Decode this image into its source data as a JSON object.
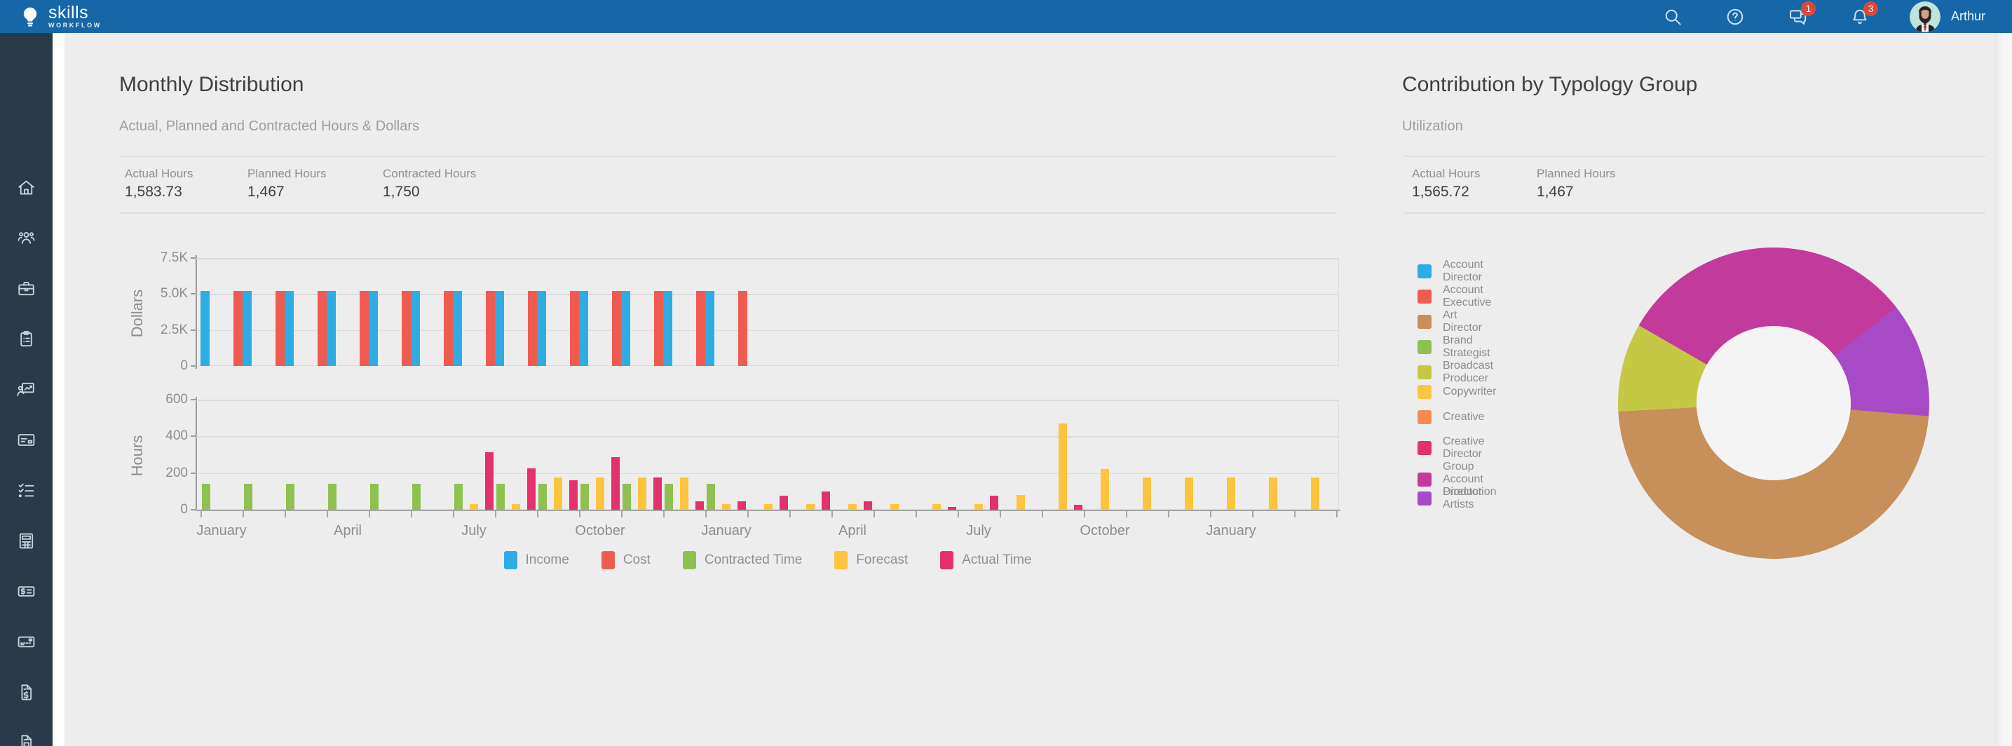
{
  "header": {
    "brand": {
      "name": "skills",
      "sub": "WORKFLOW"
    },
    "badges": {
      "messages": "1",
      "notifications": "3"
    },
    "user": {
      "name": "Arthur"
    }
  },
  "sidebar": {
    "items": [
      {
        "icon": "home"
      },
      {
        "icon": "team"
      },
      {
        "icon": "briefcase"
      },
      {
        "icon": "clipboard"
      },
      {
        "icon": "presentation"
      },
      {
        "icon": "payment-card"
      },
      {
        "icon": "tasks"
      },
      {
        "icon": "calculator"
      },
      {
        "icon": "money-check"
      },
      {
        "icon": "card-reader"
      },
      {
        "icon": "invoice"
      },
      {
        "icon": "document"
      }
    ]
  },
  "monthly": {
    "title": "Monthly Distribution",
    "subtitle": "Actual, Planned and Contracted Hours & Dollars",
    "stats": [
      {
        "label": "Actual Hours",
        "value": "1,583.73"
      },
      {
        "label": "Planned Hours",
        "value": "1,467"
      },
      {
        "label": "Contracted Hours",
        "value": "1,750"
      }
    ]
  },
  "typology": {
    "title": "Contribution by Typology Group",
    "subtitle": "Utilization",
    "stats": [
      {
        "label": "Actual Hours",
        "value": "1,565.72"
      },
      {
        "label": "Planned Hours",
        "value": "1,467"
      }
    ]
  },
  "colors": {
    "header": "#1667A8",
    "sidebar": "#2B3A49",
    "badge": "#DB4838",
    "income": "#2FACE3",
    "cost": "#F05B51",
    "contracted": "#8FC152",
    "forecast": "#FFC43D",
    "actual": "#E3316E"
  },
  "chart_data": [
    {
      "id": "dollars",
      "type": "bar",
      "ylabel": "Dollars",
      "ylim": [
        0,
        7500
      ],
      "grid": true,
      "yticks": [
        {
          "label": "7.5K",
          "value": 7500
        },
        {
          "label": "5.0K",
          "value": 5000
        },
        {
          "label": "2.5K",
          "value": 2500
        },
        {
          "label": "0",
          "value": 0
        }
      ],
      "months": 27,
      "series": [
        {
          "name": "Income",
          "color": "#2FACE3",
          "values": [
            5220,
            5220,
            5220,
            5220,
            5220,
            5220,
            5220,
            5220,
            5220,
            5220,
            5220,
            5220,
            5220,
            0,
            0,
            0,
            0,
            0,
            0,
            0,
            0,
            0,
            0,
            0,
            0,
            0,
            0
          ]
        },
        {
          "name": "Cost",
          "color": "#F05B51",
          "values": [
            0,
            5220,
            5220,
            5220,
            5220,
            5220,
            5220,
            5220,
            5220,
            5220,
            5220,
            5220,
            5220,
            5220,
            0,
            0,
            0,
            0,
            0,
            0,
            0,
            0,
            0,
            0,
            0,
            0,
            0
          ]
        }
      ]
    },
    {
      "id": "hours",
      "type": "bar",
      "ylabel": "Hours",
      "ylim": [
        0,
        600
      ],
      "grid": true,
      "yticks": [
        {
          "label": "600",
          "value": 600
        },
        {
          "label": "400",
          "value": 400
        },
        {
          "label": "200",
          "value": 200
        },
        {
          "label": "0",
          "value": 0
        }
      ],
      "months": 27,
      "x_tick_labels": [
        {
          "month": 0,
          "label": "January"
        },
        {
          "month": 3,
          "label": "April"
        },
        {
          "month": 6,
          "label": "July"
        },
        {
          "month": 9,
          "label": "October"
        },
        {
          "month": 12,
          "label": "January"
        },
        {
          "month": 15,
          "label": "April"
        },
        {
          "month": 18,
          "label": "July"
        },
        {
          "month": 21,
          "label": "October"
        },
        {
          "month": 24,
          "label": "January"
        }
      ],
      "series": [
        {
          "name": "Contracted Time",
          "color": "#8FC152",
          "values": [
            140,
            140,
            140,
            140,
            140,
            140,
            140,
            140,
            140,
            140,
            140,
            140,
            140,
            0,
            0,
            0,
            0,
            0,
            0,
            0,
            0,
            0,
            0,
            0,
            0,
            0,
            0
          ]
        },
        {
          "name": "Forecast",
          "color": "#FFC43D",
          "values": [
            0,
            0,
            0,
            0,
            0,
            0,
            30,
            30,
            175,
            175,
            175,
            175,
            30,
            30,
            30,
            30,
            30,
            30,
            30,
            80,
            470,
            220,
            175,
            175,
            175,
            175,
            175
          ]
        },
        {
          "name": "Actual Time",
          "color": "#E3316E",
          "values": [
            0,
            0,
            0,
            0,
            0,
            0,
            315,
            225,
            160,
            285,
            175,
            45,
            45,
            75,
            100,
            45,
            0,
            15,
            75,
            0,
            25,
            0,
            0,
            0,
            0,
            0,
            0
          ]
        }
      ]
    },
    {
      "id": "typology-donut",
      "type": "pie",
      "donut": true,
      "start_angle_deg": -60,
      "slices": [
        {
          "label": "Group Account Director",
          "color": "#C23A9B",
          "percent": 31.1
        },
        {
          "label": "Production Artists",
          "color": "#A74AC6",
          "percent": 11.9
        },
        {
          "label": "Art Director",
          "color": "#C78F5A",
          "percent": 47.8
        },
        {
          "label": "Broadcast Producer",
          "color": "#C5C845",
          "percent": 9.2
        }
      ],
      "legend": [
        {
          "label": "Account Director",
          "color": "#2FACE3"
        },
        {
          "label": "Account Executive",
          "color": "#F05B51"
        },
        {
          "label": "Art Director",
          "color": "#C78F5A"
        },
        {
          "label": "Brand Strategist",
          "color": "#8FC152"
        },
        {
          "label": "Broadcast Producer",
          "color": "#C5C845"
        },
        {
          "label": "Copywriter",
          "color": "#FFC43D"
        },
        {
          "label": "Creative",
          "color": "#F58B50"
        },
        {
          "label": "Creative Director",
          "color": "#E3316E"
        },
        {
          "label": "Group Account Director",
          "color": "#C23A9B"
        },
        {
          "label": "Production Artists",
          "color": "#A74AC6"
        }
      ]
    }
  ]
}
